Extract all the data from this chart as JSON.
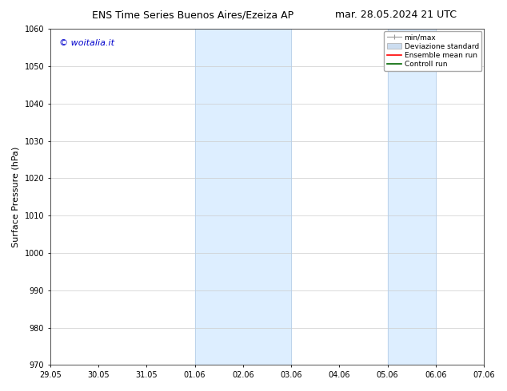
{
  "title_left": "ENS Time Series Buenos Aires/Ezeiza AP",
  "title_right": "mar. 28.05.2024 21 UTC",
  "ylabel": "Surface Pressure (hPa)",
  "ylim": [
    970,
    1060
  ],
  "yticks": [
    970,
    980,
    990,
    1000,
    1010,
    1020,
    1030,
    1040,
    1050,
    1060
  ],
  "xtick_labels": [
    "29.05",
    "30.05",
    "31.05",
    "01.06",
    "02.06",
    "03.06",
    "04.06",
    "05.06",
    "06.06",
    "07.06"
  ],
  "shaded_regions": [
    {
      "xstart": 3,
      "xend": 5
    },
    {
      "xstart": 7,
      "xend": 8
    }
  ],
  "shaded_color": "#ddeeff",
  "shaded_edge_color": "#b8d0e8",
  "watermark_text": "© woitalia.it",
  "watermark_color": "#0000cc",
  "legend_entries": [
    {
      "label": "min/max",
      "color": "#aaaaaa",
      "style": "errorbar"
    },
    {
      "label": "Deviazione standard",
      "color": "#ccddee",
      "style": "bar"
    },
    {
      "label": "Ensemble mean run",
      "color": "red",
      "style": "line"
    },
    {
      "label": "Controll run",
      "color": "green",
      "style": "line"
    }
  ],
  "background_color": "#ffffff",
  "grid_color": "#cccccc",
  "title_fontsize": 9,
  "ylabel_fontsize": 8,
  "tick_fontsize": 7,
  "watermark_fontsize": 8,
  "legend_fontsize": 6.5
}
